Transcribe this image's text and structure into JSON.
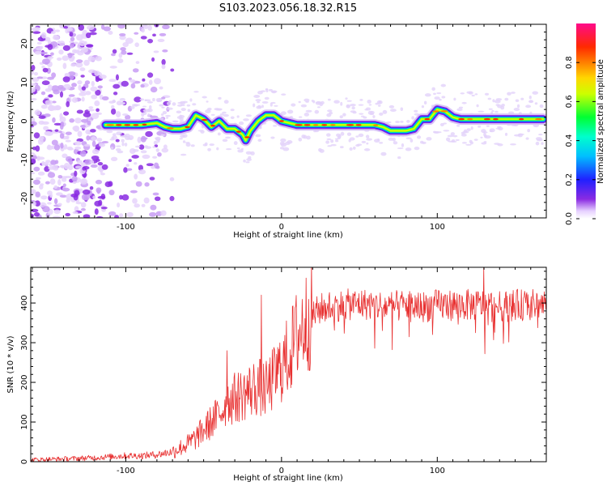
{
  "title": "S103.2023.056.18.32.R15",
  "chart_data": [
    {
      "type": "heatmap",
      "xlabel": "Height of straight line (km)",
      "ylabel": "Frequency (Hz)",
      "xlim": [
        -161,
        170
      ],
      "ylim": [
        -25,
        25
      ],
      "x_ticks": [
        -100,
        0,
        100
      ],
      "y_ticks": [
        -20,
        -10,
        0,
        10,
        20
      ],
      "grid": false,
      "colorbar": {
        "label": "Normalized spectral amplitude",
        "range": [
          0.0,
          1.0
        ],
        "ticks": [
          0.0,
          0.2,
          0.4,
          0.6,
          0.8
        ],
        "colormap": "rainbow (white-purple-blue-cyan-green-yellow-orange-red-magenta)"
      },
      "ridge": {
        "description": "frequency of peak spectral amplitude vs height",
        "x": [
          -112,
          -100,
          -90,
          -80,
          -75,
          -70,
          -65,
          -60,
          -55,
          -50,
          -45,
          -40,
          -35,
          -30,
          -25,
          -23,
          -20,
          -15,
          -10,
          -5,
          0,
          10,
          20,
          30,
          40,
          50,
          60,
          65,
          70,
          75,
          80,
          85,
          90,
          95,
          100,
          105,
          110,
          115,
          120,
          130,
          140,
          150,
          160,
          168
        ],
        "y": [
          -1,
          -1,
          -1,
          -0.5,
          -1.5,
          -2,
          -2,
          -1.5,
          1.5,
          0.5,
          -1.5,
          0,
          -2,
          -2,
          -3.5,
          -5,
          -2.5,
          0,
          1.5,
          1.5,
          0,
          -1,
          -1,
          -1,
          -1,
          -1,
          -1,
          -1.5,
          -2.5,
          -2.5,
          -2.5,
          -2,
          0.5,
          0.5,
          3,
          2.5,
          1,
          0.5,
          0.5,
          0.5,
          0.5,
          0.5,
          0.5,
          0.5
        ]
      },
      "noise_region": {
        "x_range": [
          -161,
          -80
        ],
        "amplitude": "low (0.0-0.2)"
      }
    },
    {
      "type": "line",
      "xlabel": "Height of straight line (km)",
      "ylabel": "SNR (10 * v/v)",
      "xlim": [
        -161,
        170
      ],
      "ylim": [
        0,
        490
      ],
      "x_ticks": [
        -100,
        0,
        100
      ],
      "y_ticks": [
        0,
        100,
        200,
        300,
        400
      ],
      "color": "#e83030",
      "grid": false,
      "series": [
        {
          "name": "",
          "x": [
            -161,
            -140,
            -120,
            -100,
            -90,
            -80,
            -70,
            -65,
            -60,
            -55,
            -50,
            -45,
            -40,
            -35,
            -30,
            -25,
            -20,
            -15,
            -10,
            -5,
            0,
            5,
            10,
            15,
            20,
            25,
            30,
            40,
            50,
            60,
            70,
            80,
            90,
            100,
            110,
            120,
            130,
            140,
            150,
            160,
            170
          ],
          "y": [
            5,
            7,
            10,
            15,
            15,
            18,
            25,
            35,
            45,
            60,
            80,
            100,
            120,
            150,
            160,
            170,
            180,
            190,
            180,
            210,
            240,
            270,
            320,
            350,
            370,
            385,
            390,
            395,
            398,
            395,
            390,
            395,
            390,
            395,
            395,
            395,
            395,
            390,
            395,
            395,
            400
          ],
          "spikes": [
            {
              "x": -35,
              "y": 280
            },
            {
              "x": -13,
              "y": 420
            },
            {
              "x": 130,
              "y": 490
            }
          ]
        }
      ]
    }
  ]
}
